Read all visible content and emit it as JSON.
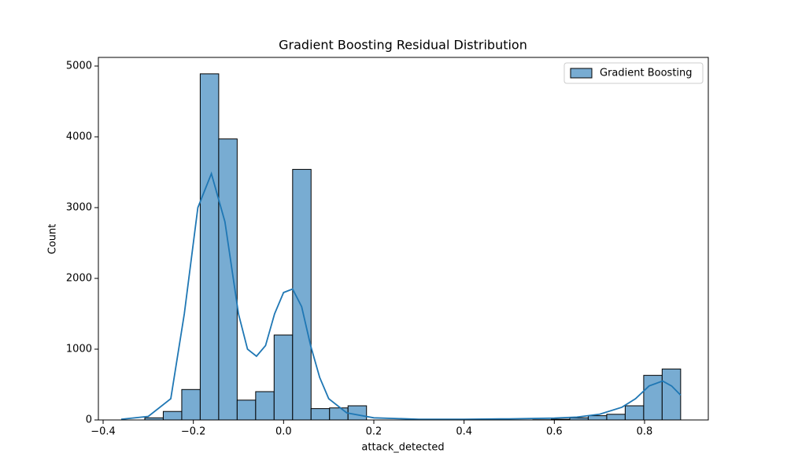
{
  "chart_data": {
    "type": "histogram",
    "title": "Gradient Boosting Residual Distribution",
    "x_label": "attack_detected",
    "y_label": "Count",
    "bins": [
      -0.3076,
      -0.2667,
      -0.2257,
      -0.1848,
      -0.1438,
      -0.1029,
      -0.0619,
      -0.021,
      0.02,
      0.0609,
      0.1019,
      0.1428,
      0.1838,
      0.2247,
      0.2657,
      0.3067,
      0.3476,
      0.3886,
      0.4295,
      0.4705,
      0.5114,
      0.5524,
      0.5933,
      0.6343,
      0.6752,
      0.7162,
      0.7571,
      0.7981,
      0.839,
      0.88
    ],
    "series": [
      {
        "name": "Gradient Boosting",
        "color": "#78acd2",
        "edge_color": "#000000",
        "values": [
          30,
          120,
          430,
          4890,
          3970,
          280,
          400,
          1200,
          3540,
          160,
          170,
          200,
          0,
          0,
          0,
          0,
          0,
          0,
          0,
          0,
          0,
          3,
          10,
          30,
          60,
          80,
          200,
          630,
          720
        ]
      }
    ],
    "kde": {
      "color": "#1f77b4",
      "x": [
        -0.36,
        -0.3,
        -0.25,
        -0.22,
        -0.19,
        -0.16,
        -0.13,
        -0.1,
        -0.08,
        -0.06,
        -0.04,
        -0.02,
        0.0,
        0.02,
        0.04,
        0.06,
        0.08,
        0.1,
        0.14,
        0.2,
        0.3,
        0.4,
        0.5,
        0.6,
        0.65,
        0.7,
        0.75,
        0.78,
        0.81,
        0.84,
        0.86,
        0.88
      ],
      "y": [
        10,
        50,
        300,
        1500,
        3000,
        3480,
        2800,
        1500,
        1000,
        900,
        1050,
        1500,
        1800,
        1850,
        1600,
        1050,
        600,
        300,
        100,
        30,
        10,
        10,
        15,
        25,
        40,
        80,
        180,
        300,
        480,
        550,
        480,
        350
      ]
    },
    "xlim": [
      -0.4105,
      0.9413
    ],
    "ylim": [
      0,
      5122
    ],
    "xticks": [
      {
        "value": -0.4,
        "label": "−0.4"
      },
      {
        "value": -0.2,
        "label": "−0.2"
      },
      {
        "value": 0,
        "label": "0.0"
      },
      0.2,
      0.4,
      0.6,
      0.8
    ],
    "yticks": [
      0,
      1000,
      2000,
      3000,
      4000,
      5000
    ],
    "legend": "upper right"
  }
}
